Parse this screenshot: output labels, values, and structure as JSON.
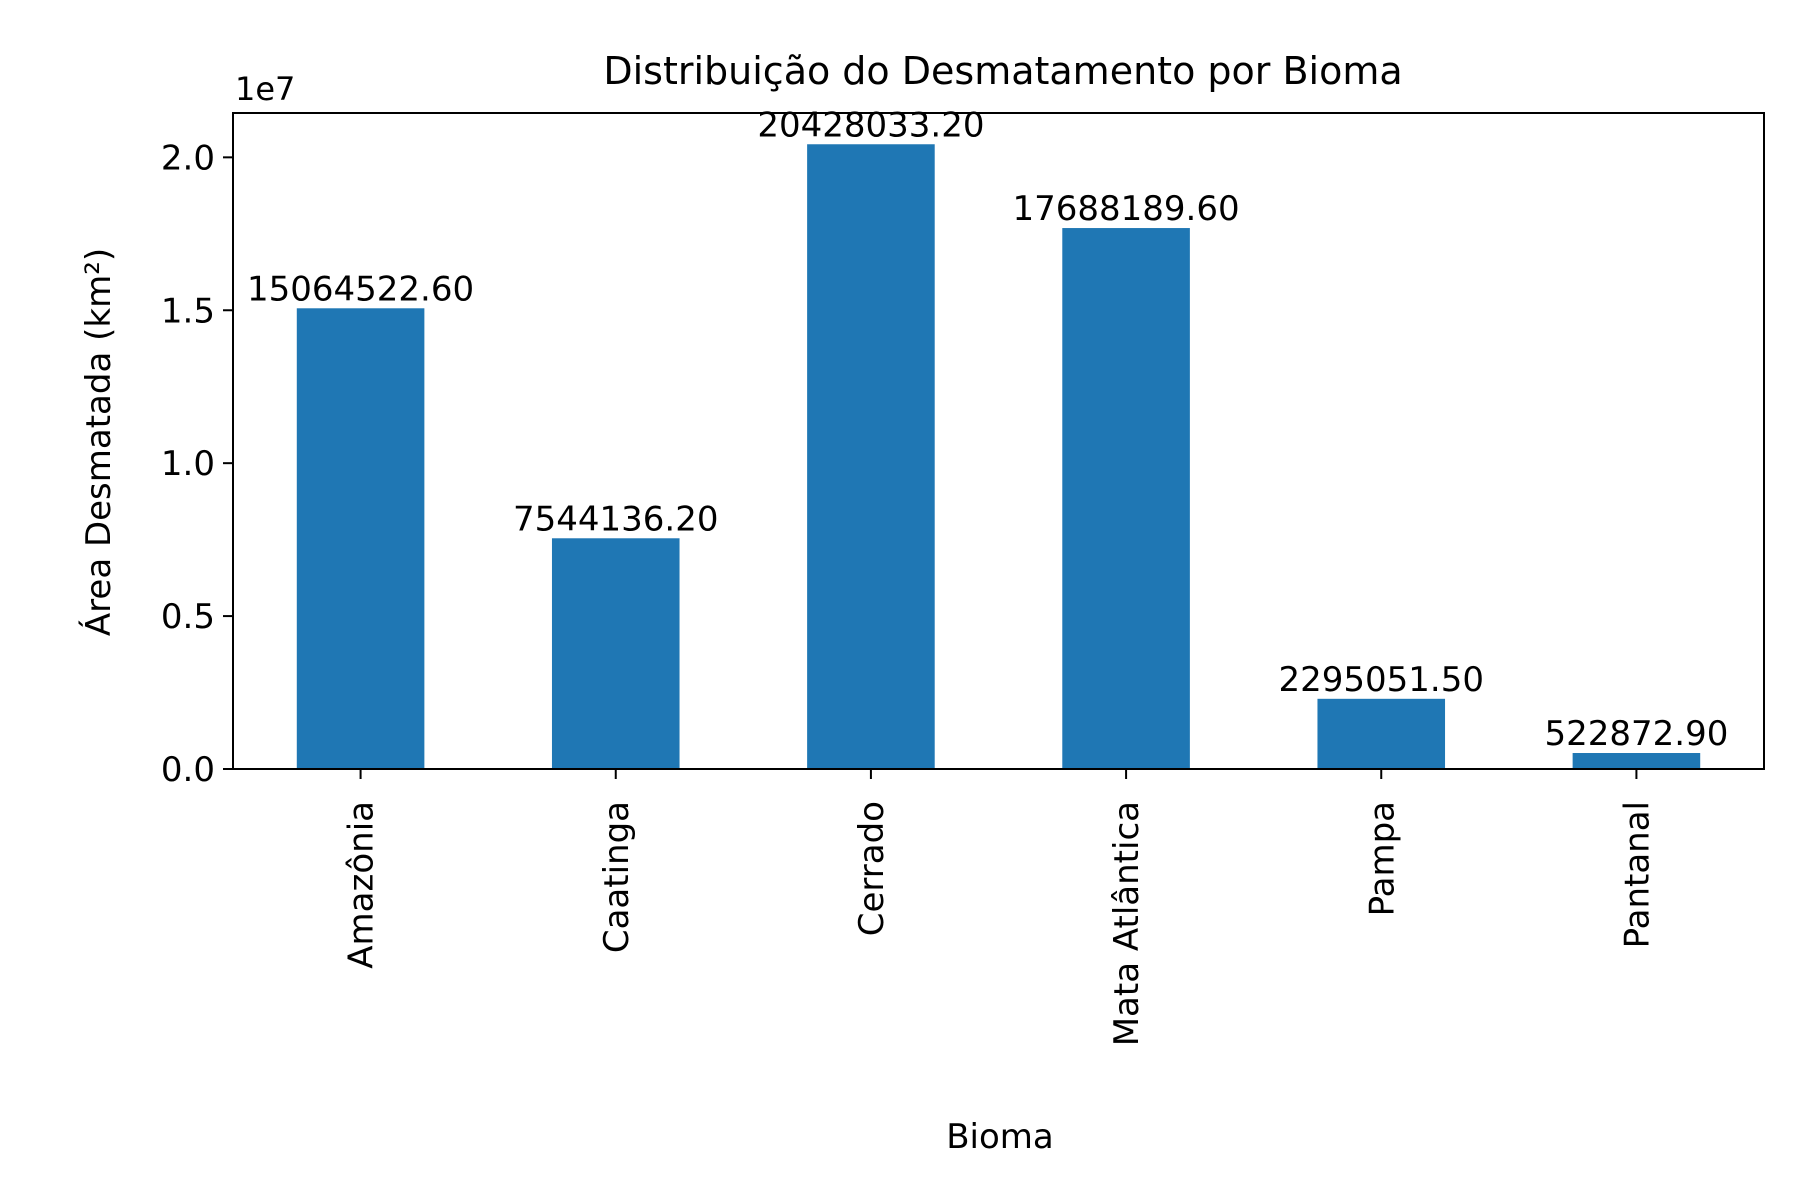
{
  "chart_data": {
    "type": "bar",
    "title": "Distribuição do Desmatamento por Bioma",
    "xlabel": "Bioma",
    "ylabel": "Área Desmatada (km²)",
    "y_scale_label": "1e7",
    "categories": [
      "Amazônia",
      "Caatinga",
      "Cerrado",
      "Mata Atlântica",
      "Pampa",
      "Pantanal"
    ],
    "values": [
      15064522.6,
      7544136.2,
      20428033.2,
      17688189.6,
      2295051.5,
      522872.9
    ],
    "value_labels": [
      "15064522.60",
      "7544136.20",
      "20428033.20",
      "17688189.60",
      "2295051.50",
      "522872.90"
    ],
    "ylim": [
      0,
      21450000
    ],
    "yticks": [
      0,
      5000000,
      10000000,
      15000000,
      20000000
    ],
    "ytick_labels": [
      "0.0",
      "0.5",
      "1.0",
      "1.5",
      "2.0"
    ],
    "bar_color": "#1f77b4",
    "grid": false,
    "legend": "none"
  }
}
